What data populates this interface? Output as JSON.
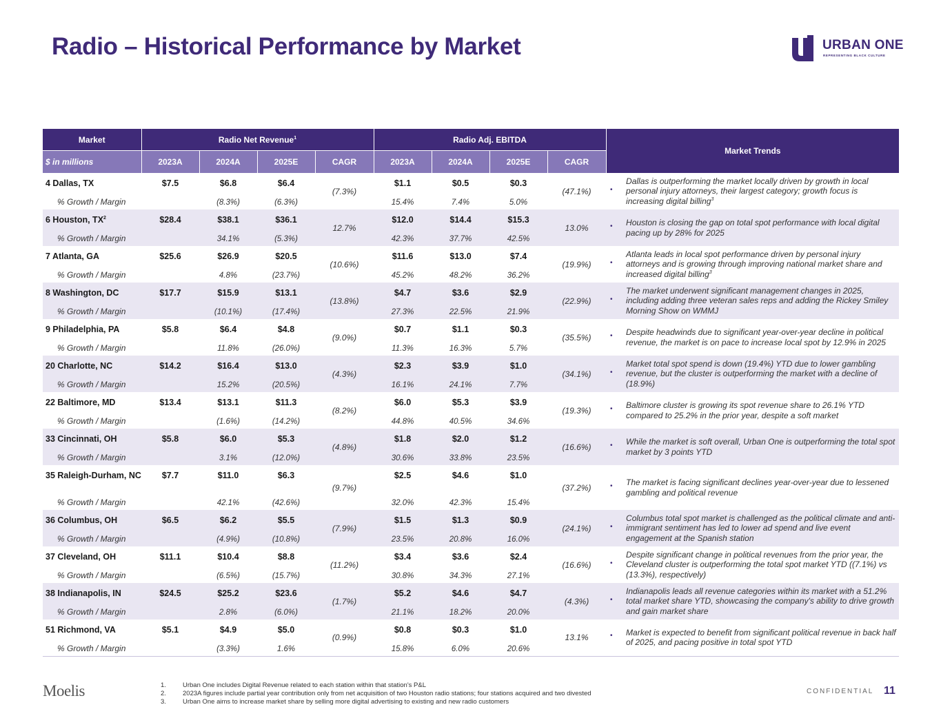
{
  "title": "Radio – Historical Performance by Market",
  "logo": {
    "name": "URBAN ONE",
    "tagline": "REPRESENTING BLACK CULTURE",
    "brand_color": "#3f2a78"
  },
  "table": {
    "headers": {
      "market": "Market",
      "revenue_group": "Radio Net Revenue",
      "revenue_note": "1",
      "ebitda_group": "Radio Adj. EBITDA",
      "trends": "Market Trends",
      "units": "$ in millions",
      "years": [
        "2023A",
        "2024A",
        "2025E",
        "CAGR",
        "2023A",
        "2024A",
        "2025E",
        "CAGR"
      ]
    },
    "growth_label": "% Growth / Margin",
    "rows": [
      {
        "market": "4  Dallas, TX",
        "rev": [
          "$7.5",
          "$6.8",
          "$6.4"
        ],
        "rev_growth": [
          "",
          "(8.3%)",
          "(6.3%)"
        ],
        "rev_cagr": "(7.3%)",
        "ebitda": [
          "$1.1",
          "$0.5",
          "$0.3"
        ],
        "margin": [
          "15.4%",
          "7.4%",
          "5.0%"
        ],
        "ebitda_cagr": "(47.1%)",
        "trend": "Dallas is outperforming the market locally driven by growth in local personal injury attorneys, their largest category; growth focus is increasing digital billing",
        "trend_note": "3"
      },
      {
        "market": "6  Houston, TX",
        "market_note": "2",
        "rev": [
          "$28.4",
          "$38.1",
          "$36.1"
        ],
        "rev_growth": [
          "",
          "34.1%",
          "(5.3%)"
        ],
        "rev_cagr": "12.7%",
        "ebitda": [
          "$12.0",
          "$14.4",
          "$15.3"
        ],
        "margin": [
          "42.3%",
          "37.7%",
          "42.5%"
        ],
        "ebitda_cagr": "13.0%",
        "trend": "Houston is closing the gap on total spot performance with local digital pacing up by 28% for 2025"
      },
      {
        "market": "7  Atlanta, GA",
        "rev": [
          "$25.6",
          "$26.9",
          "$20.5"
        ],
        "rev_growth": [
          "",
          "4.8%",
          "(23.7%)"
        ],
        "rev_cagr": "(10.6%)",
        "ebitda": [
          "$11.6",
          "$13.0",
          "$7.4"
        ],
        "margin": [
          "45.2%",
          "48.2%",
          "36.2%"
        ],
        "ebitda_cagr": "(19.9%)",
        "trend": "Atlanta leads in local spot performance driven by personal injury attorneys and is growing through improving national market share and increased digital billing",
        "trend_note": "3"
      },
      {
        "market": "8  Washington, DC",
        "rev": [
          "$17.7",
          "$15.9",
          "$13.1"
        ],
        "rev_growth": [
          "",
          "(10.1%)",
          "(17.4%)"
        ],
        "rev_cagr": "(13.8%)",
        "ebitda": [
          "$4.7",
          "$3.6",
          "$2.9"
        ],
        "margin": [
          "27.3%",
          "22.5%",
          "21.9%"
        ],
        "ebitda_cagr": "(22.9%)",
        "trend": "The market underwent significant management changes in 2025, including adding three veteran sales reps and adding the Rickey Smiley Morning Show on WMMJ"
      },
      {
        "market": "9  Philadelphia, PA",
        "rev": [
          "$5.8",
          "$6.4",
          "$4.8"
        ],
        "rev_growth": [
          "",
          "11.8%",
          "(26.0%)"
        ],
        "rev_cagr": "(9.0%)",
        "ebitda": [
          "$0.7",
          "$1.1",
          "$0.3"
        ],
        "margin": [
          "11.3%",
          "16.3%",
          "5.7%"
        ],
        "ebitda_cagr": "(35.5%)",
        "trend": "Despite headwinds due to significant year-over-year decline in political revenue, the market is on pace to increase local spot by 12.9% in 2025"
      },
      {
        "market": "20 Charlotte, NC",
        "rev": [
          "$14.2",
          "$16.4",
          "$13.0"
        ],
        "rev_growth": [
          "",
          "15.2%",
          "(20.5%)"
        ],
        "rev_cagr": "(4.3%)",
        "ebitda": [
          "$2.3",
          "$3.9",
          "$1.0"
        ],
        "margin": [
          "16.1%",
          "24.1%",
          "7.7%"
        ],
        "ebitda_cagr": "(34.1%)",
        "trend": "Market total spot spend is down (19.4%) YTD due to lower gambling revenue, but the cluster is outperforming the market with a decline of (18.9%)"
      },
      {
        "market": "22 Baltimore, MD",
        "rev": [
          "$13.4",
          "$13.1",
          "$11.3"
        ],
        "rev_growth": [
          "",
          "(1.6%)",
          "(14.2%)"
        ],
        "rev_cagr": "(8.2%)",
        "ebitda": [
          "$6.0",
          "$5.3",
          "$3.9"
        ],
        "margin": [
          "44.8%",
          "40.5%",
          "34.6%"
        ],
        "ebitda_cagr": "(19.3%)",
        "trend": "Baltimore cluster is growing its spot revenue share to 26.1% YTD compared to 25.2% in the prior year, despite a soft market"
      },
      {
        "market": "33 Cincinnati, OH",
        "rev": [
          "$5.8",
          "$6.0",
          "$5.3"
        ],
        "rev_growth": [
          "",
          "3.1%",
          "(12.0%)"
        ],
        "rev_cagr": "(4.8%)",
        "ebitda": [
          "$1.8",
          "$2.0",
          "$1.2"
        ],
        "margin": [
          "30.6%",
          "33.8%",
          "23.5%"
        ],
        "ebitda_cagr": "(16.6%)",
        "trend": "While the market is soft overall, Urban One is outperforming the total spot market by 3 points YTD"
      },
      {
        "market": "35 Raleigh-Durham, NC",
        "rev": [
          "$7.7",
          "$11.0",
          "$6.3"
        ],
        "rev_growth": [
          "",
          "42.1%",
          "(42.6%)"
        ],
        "rev_cagr": "(9.7%)",
        "ebitda": [
          "$2.5",
          "$4.6",
          "$1.0"
        ],
        "margin": [
          "32.0%",
          "42.3%",
          "15.4%"
        ],
        "ebitda_cagr": "(37.2%)",
        "trend": "The market is facing significant declines year-over-year due to lessened gambling and political revenue"
      },
      {
        "market": "36 Columbus, OH",
        "rev": [
          "$6.5",
          "$6.2",
          "$5.5"
        ],
        "rev_growth": [
          "",
          "(4.9%)",
          "(10.8%)"
        ],
        "rev_cagr": "(7.9%)",
        "ebitda": [
          "$1.5",
          "$1.3",
          "$0.9"
        ],
        "margin": [
          "23.5%",
          "20.8%",
          "16.0%"
        ],
        "ebitda_cagr": "(24.1%)",
        "trend": "Columbus total spot market is challenged as the political climate and anti-immigrant sentiment has led to lower ad spend and live event engagement at the Spanish station"
      },
      {
        "market": "37 Cleveland, OH",
        "rev": [
          "$11.1",
          "$10.4",
          "$8.8"
        ],
        "rev_growth": [
          "",
          "(6.5%)",
          "(15.7%)"
        ],
        "rev_cagr": "(11.2%)",
        "ebitda": [
          "$3.4",
          "$3.6",
          "$2.4"
        ],
        "margin": [
          "30.8%",
          "34.3%",
          "27.1%"
        ],
        "ebitda_cagr": "(16.6%)",
        "trend": "Despite significant change in political revenues from the prior year, the Cleveland cluster is outperforming the total spot market YTD ((7.1%) vs (13.3%), respectively)"
      },
      {
        "market": "38 Indianapolis, IN",
        "rev": [
          "$24.5",
          "$25.2",
          "$23.6"
        ],
        "rev_growth": [
          "",
          "2.8%",
          "(6.0%)"
        ],
        "rev_cagr": "(1.7%)",
        "ebitda": [
          "$5.2",
          "$4.6",
          "$4.7"
        ],
        "margin": [
          "21.1%",
          "18.2%",
          "20.0%"
        ],
        "ebitda_cagr": "(4.3%)",
        "trend": "Indianapolis leads all revenue categories within its market with a 51.2% total market share YTD, showcasing the company's ability to drive growth and gain market share"
      },
      {
        "market": "51 Richmond, VA",
        "rev": [
          "$5.1",
          "$4.9",
          "$5.0"
        ],
        "rev_growth": [
          "",
          "(3.3%)",
          "1.6%"
        ],
        "rev_cagr": "(0.9%)",
        "ebitda": [
          "$0.8",
          "$0.3",
          "$1.0"
        ],
        "margin": [
          "15.8%",
          "6.0%",
          "20.6%"
        ],
        "ebitda_cagr": "13.1%",
        "trend": "Market is expected to benefit from significant political revenue in back half of 2025, and pacing positive in total spot YTD"
      }
    ]
  },
  "footer": {
    "firm": "Moelis",
    "notes": [
      {
        "num": "1.",
        "text": "Urban One includes Digital Revenue related to each station within that station's P&L"
      },
      {
        "num": "2.",
        "text": "2023A figures include partial year contribution only from net acquisition of two Houston radio stations; four stations acquired and two divested"
      },
      {
        "num": "3.",
        "text": "Urban One aims to increase market share by selling more digital advertising to existing and new radio customers"
      }
    ],
    "confidential": "CONFIDENTIAL",
    "page": "11"
  }
}
